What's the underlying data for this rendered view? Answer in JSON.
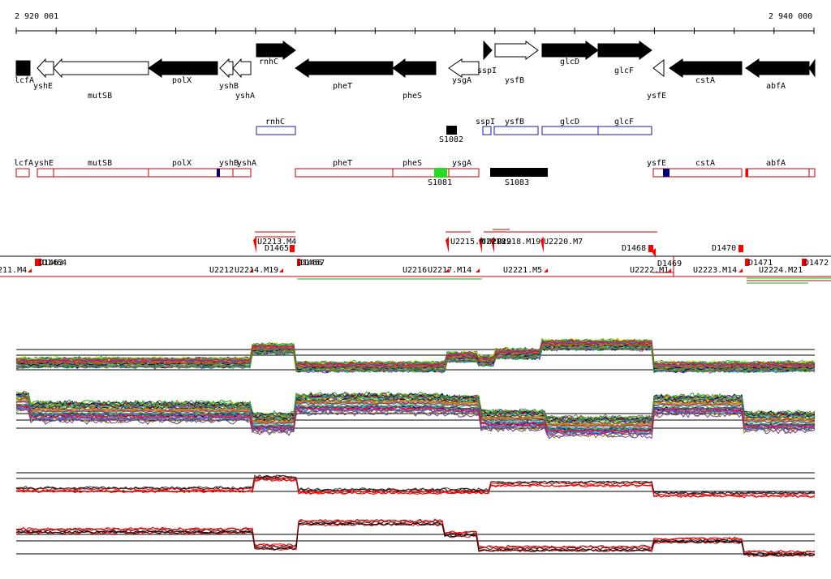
{
  "ruler": {
    "start_label": "2 920 001",
    "end_label": "2 940 000"
  },
  "genes": [
    {
      "name": "lcfA",
      "fill": "black",
      "dir": "r",
      "label_row": "below"
    },
    {
      "name": "yshE",
      "fill": "white",
      "dir": "l",
      "label_row": "below"
    },
    {
      "name": "mutSB",
      "fill": "white",
      "dir": "l",
      "label_row": "below"
    },
    {
      "name": "polX",
      "fill": "black",
      "dir": "l",
      "label_row": "below"
    },
    {
      "name": "yshB",
      "fill": "white",
      "dir": "l",
      "label_row": "below"
    },
    {
      "name": "yshA",
      "fill": "white",
      "dir": "l",
      "label_row": "below"
    },
    {
      "name": "rnhC",
      "fill": "black",
      "dir": "r",
      "label_row": "above"
    },
    {
      "name": "pheT",
      "fill": "black",
      "dir": "l",
      "label_row": "below"
    },
    {
      "name": "pheS",
      "fill": "black",
      "dir": "l",
      "label_row": "below"
    },
    {
      "name": "ysgA",
      "fill": "white",
      "dir": "l",
      "label_row": "below"
    },
    {
      "name": "sspI",
      "fill": "black",
      "dir": "r",
      "label_row": "below"
    },
    {
      "name": "ysfB",
      "fill": "white",
      "dir": "r",
      "label_row": "below"
    },
    {
      "name": "glcD",
      "fill": "black",
      "dir": "r",
      "label_row": "below"
    },
    {
      "name": "glcF",
      "fill": "black",
      "dir": "r",
      "label_row": "below"
    },
    {
      "name": "ysfE",
      "fill": "white",
      "dir": "l",
      "label_row": "below"
    },
    {
      "name": "cstA",
      "fill": "black",
      "dir": "l",
      "label_row": "below"
    },
    {
      "name": "abfA",
      "fill": "black",
      "dir": "l",
      "label_row": "below"
    }
  ],
  "operons_row1": [
    "rnhC",
    "S1082",
    "sspI",
    "ysfB",
    "glcD",
    "glcF"
  ],
  "operons_row2": [
    "lcfA",
    "yshE",
    "mutSB",
    "polX",
    "yshB",
    "yshA",
    "pheT",
    "pheS",
    "ysgA",
    "S1081",
    "S1083",
    "ysfE",
    "cstA",
    "abfA"
  ],
  "features_above": [
    "U2213.M4",
    "D1465",
    "U2215.M",
    "U2218",
    "U2219",
    "U2218.M19",
    "U2220.M7",
    "D1468",
    "D1470"
  ],
  "features_below": [
    "211.M4",
    "D1463",
    "D1464",
    "U2212",
    "U2214.M19",
    "D1466",
    "D1467",
    "U2216",
    "U2217.M14",
    "U2221.M5",
    "U2222.M1",
    "D1469",
    "U2223.M14",
    "D1471",
    "U2224.M21",
    "D1472"
  ],
  "colors": {
    "gene_fill": "#000000",
    "operon_blue": "#1a1aa8",
    "operon_red": "#cc0000",
    "marker_red": "#ff0000",
    "green_block": "#22dd22",
    "navy_block": "#000080"
  },
  "panels": [
    "expression-panel-1",
    "expression-panel-2",
    "expression-panel-3",
    "expression-panel-4"
  ]
}
